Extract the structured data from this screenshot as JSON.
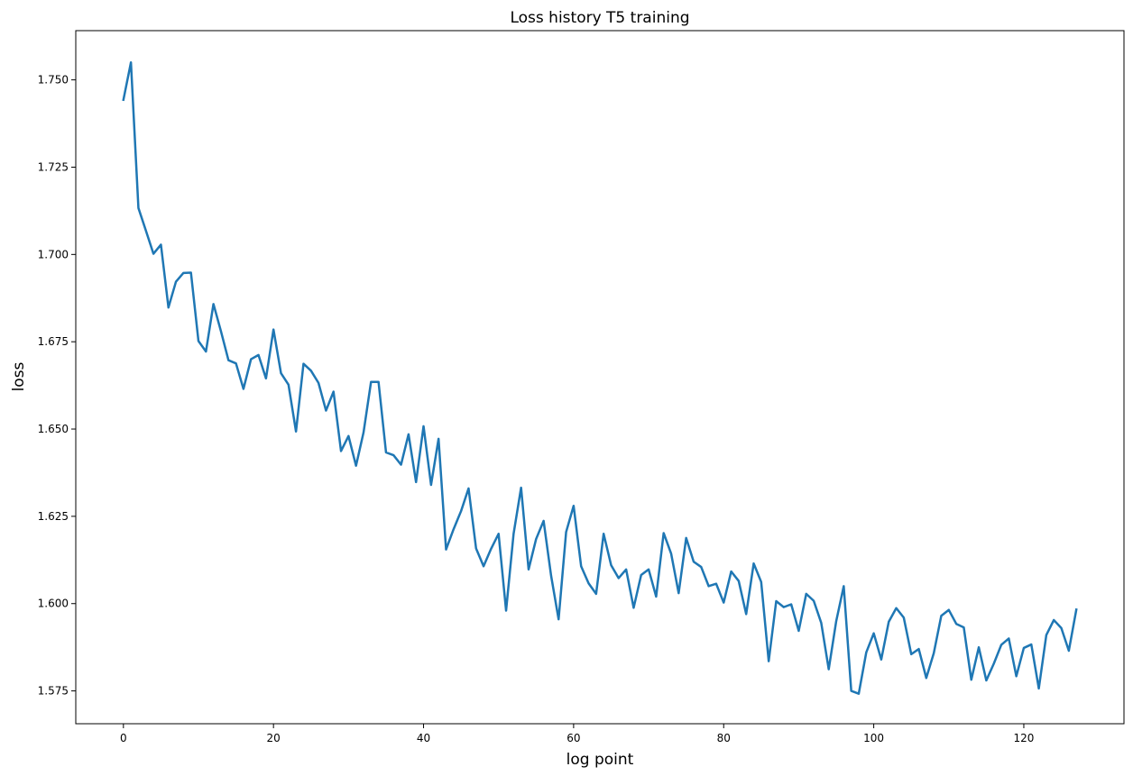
{
  "chart_data": {
    "type": "line",
    "title": "Loss history T5 training",
    "xlabel": "log point",
    "ylabel": "loss",
    "xlim": [
      -6.35,
      133.35
    ],
    "ylim": [
      1.5656,
      1.7641
    ],
    "xticks": [
      0,
      20,
      40,
      60,
      80,
      100,
      120
    ],
    "yticks": [
      1.575,
      1.6,
      1.625,
      1.65,
      1.675,
      1.7,
      1.725,
      1.75
    ],
    "ytick_labels": [
      "1.575",
      "1.600",
      "1.625",
      "1.650",
      "1.675",
      "1.700",
      "1.725",
      "1.750"
    ],
    "grid": false,
    "color": "#1f77b4",
    "series": [
      {
        "x": [
          0,
          1,
          2,
          3,
          4,
          5,
          6,
          7,
          8,
          9,
          10,
          11,
          12,
          13,
          14,
          15,
          16,
          17,
          18,
          19,
          20,
          21,
          22,
          23,
          24,
          25,
          26,
          27,
          28,
          29,
          30,
          31,
          32,
          33,
          34,
          35,
          36,
          37,
          38,
          39,
          40,
          41,
          42,
          43,
          44,
          45,
          46,
          47,
          48,
          49,
          50,
          51,
          52,
          53,
          54,
          55,
          56,
          57,
          58,
          59,
          60,
          61,
          62,
          63,
          64,
          65,
          66,
          67,
          68,
          69,
          70,
          71,
          72,
          73,
          74,
          75,
          76,
          77,
          78,
          79,
          80,
          81,
          82,
          83,
          84,
          85,
          86,
          87,
          88,
          89,
          90,
          91,
          92,
          93,
          94,
          95,
          96,
          97,
          98,
          99,
          100,
          101,
          102,
          103,
          104,
          105,
          106,
          107,
          108,
          109,
          110,
          111,
          112,
          113,
          114,
          115,
          116,
          117,
          118,
          119,
          120,
          121,
          122,
          123,
          124,
          125,
          126,
          127
        ],
        "values": [
          1.7443,
          1.755,
          1.7133,
          1.7068,
          1.7002,
          1.7028,
          1.6848,
          1.6922,
          1.6947,
          1.6948,
          1.6752,
          1.6722,
          1.6858,
          1.678,
          1.6697,
          1.6688,
          1.6615,
          1.67,
          1.6712,
          1.6645,
          1.6785,
          1.666,
          1.6627,
          1.6493,
          1.6687,
          1.6667,
          1.6632,
          1.6553,
          1.6607,
          1.6437,
          1.648,
          1.6395,
          1.649,
          1.6635,
          1.6635,
          1.6433,
          1.6425,
          1.6398,
          1.6485,
          1.6348,
          1.6508,
          1.634,
          1.6472,
          1.6155,
          1.6213,
          1.6265,
          1.633,
          1.6158,
          1.6107,
          1.6157,
          1.62,
          1.598,
          1.62,
          1.6332,
          1.6098,
          1.6185,
          1.6237,
          1.608,
          1.5955,
          1.6205,
          1.628,
          1.6107,
          1.6058,
          1.6028,
          1.62,
          1.611,
          1.6073,
          1.6098,
          1.5988,
          1.6082,
          1.6098,
          1.602,
          1.6202,
          1.6143,
          1.603,
          1.6188,
          1.612,
          1.6105,
          1.605,
          1.6057,
          1.6003,
          1.6092,
          1.6065,
          1.597,
          1.6115,
          1.6062,
          1.5835,
          1.6007,
          1.599,
          1.5998,
          1.5922,
          1.6028,
          1.6008,
          1.5945,
          1.5812,
          1.595,
          1.605,
          1.575,
          1.5742,
          1.586,
          1.5915,
          1.584,
          1.5948,
          1.5987,
          1.596,
          1.5855,
          1.587,
          1.5787,
          1.5858,
          1.5965,
          1.5982,
          1.5942,
          1.5932,
          1.5782,
          1.5875,
          1.578,
          1.5828,
          1.5882,
          1.59,
          1.5792,
          1.5873,
          1.5883,
          1.5757,
          1.591,
          1.5953,
          1.593,
          1.5865,
          1.5983
        ]
      }
    ]
  }
}
